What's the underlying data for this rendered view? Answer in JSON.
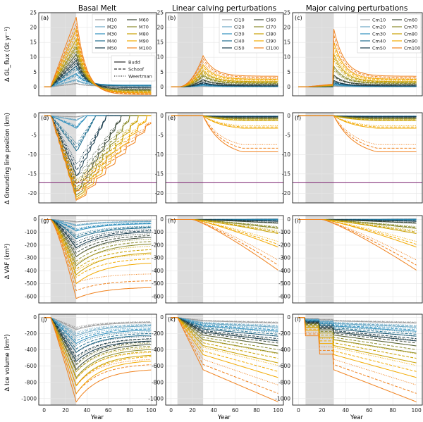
{
  "figure": {
    "column_titles": [
      "Basal Melt",
      "Linear calving perturbations",
      "Major calving perturbations"
    ],
    "row_ylabels": [
      "Δ GL_flux (Gt yr⁻¹)",
      "Δ Grounding line position (km)",
      "Δ VAF (km³)",
      "Δ Ice volume (km³)"
    ],
    "xlabel": "Year",
    "panel_labels": [
      "(a)",
      "(b)",
      "(c)",
      "(d)",
      "(e)",
      "(f)",
      "(g)",
      "(h)",
      "(i)",
      "(j)",
      "(k)",
      "(l)"
    ],
    "xticks": [
      "0",
      "20",
      "40",
      "60",
      "80",
      "100"
    ]
  },
  "legends": {
    "basal": [
      "M10",
      "M20",
      "M30",
      "M40",
      "M50",
      "M60",
      "M70",
      "M80",
      "M90",
      "M100"
    ],
    "linear": [
      "Cl10",
      "Cl20",
      "Cl30",
      "Cl40",
      "Cl50",
      "Cl60",
      "Cl70",
      "Cl80",
      "Cl90",
      "Cl100"
    ],
    "major": [
      "Cm10",
      "Cm20",
      "Cm30",
      "Cm40",
      "Cm50",
      "Cm60",
      "Cm70",
      "Cm80",
      "Cm90",
      "Cm100"
    ],
    "laws": [
      "Budd",
      "Schoof",
      "Weertman"
    ],
    "colors": [
      "#9e9e9e",
      "#6aa7c4",
      "#2f8fbd",
      "#1f6e8f",
      "#14384a",
      "#3c4a3a",
      "#8a8a2a",
      "#c9a000",
      "#f2a900",
      "#f0821e"
    ]
  },
  "chart_data": [
    {
      "panel": "(a)",
      "type": "line",
      "xlabel": "",
      "ylabel": "Δ GL_flux (Gt yr⁻¹)",
      "xlim": [
        -5,
        105
      ],
      "ylim": [
        -3,
        25
      ],
      "yticks": [
        0,
        5,
        10,
        15,
        20,
        25
      ],
      "shaded": [
        6,
        30
      ],
      "peak_year": 30,
      "series": [
        {
          "name": "M10",
          "peak": 1.2,
          "end": 0.3
        },
        {
          "name": "M20",
          "peak": 2.5,
          "end": 0.5
        },
        {
          "name": "M30",
          "peak": 4.5,
          "end": 0.6
        },
        {
          "name": "M40",
          "peak": 7,
          "end": 0.3
        },
        {
          "name": "M50",
          "peak": 9,
          "end": -0.3
        },
        {
          "name": "M60",
          "peak": 11,
          "end": -0.8
        },
        {
          "name": "M70",
          "peak": 13.5,
          "end": -1.3
        },
        {
          "name": "M80",
          "peak": 16,
          "end": -1.8
        },
        {
          "name": "M90",
          "peak": 19.5,
          "end": -2.1
        },
        {
          "name": "M100",
          "peak": 23.5,
          "end": -2.6
        }
      ]
    },
    {
      "panel": "(b)",
      "type": "line",
      "xlim": [
        -5,
        105
      ],
      "ylim": [
        -3,
        25
      ],
      "yticks": [
        0,
        5,
        10,
        15,
        20,
        25
      ],
      "shaded": [
        6,
        30
      ],
      "peak_year": 30,
      "series": [
        {
          "name": "Cl10",
          "peak": 0.2,
          "end": 0.05
        },
        {
          "name": "Cl20",
          "peak": 0.4,
          "end": 0.1
        },
        {
          "name": "Cl30",
          "peak": 0.7,
          "end": 0.2
        },
        {
          "name": "Cl40",
          "peak": 1.0,
          "end": 0.3
        },
        {
          "name": "Cl50",
          "peak": 1.5,
          "end": 0.4
        },
        {
          "name": "Cl60",
          "peak": 2.5,
          "end": 0.8
        },
        {
          "name": "Cl70",
          "peak": 4,
          "end": 1.3
        },
        {
          "name": "Cl80",
          "peak": 5.5,
          "end": 1.8
        },
        {
          "name": "Cl90",
          "peak": 7.5,
          "end": 2.6
        },
        {
          "name": "Cl100",
          "peak": 10.5,
          "end": 3.6
        }
      ]
    },
    {
      "panel": "(c)",
      "type": "line",
      "xlim": [
        -5,
        105
      ],
      "ylim": [
        -3,
        25
      ],
      "yticks": [
        0,
        5,
        10,
        15,
        20,
        25
      ],
      "shaded": [
        6,
        30
      ],
      "peak_year": 30,
      "series": [
        {
          "name": "Cm10",
          "peak": 0.3,
          "end": 0.05
        },
        {
          "name": "Cm20",
          "peak": 0.6,
          "end": 0.1
        },
        {
          "name": "Cm30",
          "peak": 1.0,
          "end": 0.2
        },
        {
          "name": "Cm40",
          "peak": 1.5,
          "end": 0.3
        },
        {
          "name": "Cm50",
          "peak": 2.2,
          "end": 0.4
        },
        {
          "name": "Cm60",
          "peak": 4,
          "end": 0.8
        },
        {
          "name": "Cm70",
          "peak": 7,
          "end": 1.3
        },
        {
          "name": "Cm80",
          "peak": 11,
          "end": 1.8
        },
        {
          "name": "Cm90",
          "peak": 15,
          "end": 2.6
        },
        {
          "name": "Cm100",
          "peak": 19.5,
          "end": 3.6
        }
      ]
    },
    {
      "panel": "(d)",
      "type": "line",
      "xlim": [
        -5,
        105
      ],
      "ylim": [
        -22.5,
        0.8
      ],
      "yticks": [
        0,
        -5,
        -10,
        -15,
        -20
      ],
      "shaded": [
        6,
        30
      ],
      "hline": -17.3,
      "series": [
        {
          "name": "M10",
          "min": -0.3,
          "recover": 36
        },
        {
          "name": "M20",
          "min": -1.2,
          "recover": 38
        },
        {
          "name": "M30",
          "min": -3.2,
          "recover": 40
        },
        {
          "name": "M40",
          "min": -9,
          "recover": 48
        },
        {
          "name": "M50",
          "min": -15.5,
          "recover": 58
        },
        {
          "name": "M60",
          "min": -19.5,
          "recover": 72
        },
        {
          "name": "M70",
          "min": -20.5,
          "recover": 80
        },
        {
          "name": "M80",
          "min": -21.0,
          "recover": 88
        },
        {
          "name": "M90",
          "min": -21.5,
          "recover": 96
        },
        {
          "name": "M100",
          "min": -21.8,
          "recover": 104
        }
      ]
    },
    {
      "panel": "(e)",
      "type": "line",
      "xlim": [
        -5,
        105
      ],
      "ylim": [
        -22.5,
        0.8
      ],
      "yticks": [
        0,
        -5,
        -10,
        -15,
        -20
      ],
      "shaded": [
        6,
        30
      ],
      "hline": -17.3,
      "series": [
        {
          "name": "Cl10",
          "end": -0.05
        },
        {
          "name": "Cl20",
          "end": -0.1
        },
        {
          "name": "Cl30",
          "end": -0.15
        },
        {
          "name": "Cl40",
          "end": -0.2
        },
        {
          "name": "Cl50",
          "end": -0.25
        },
        {
          "name": "Cl60",
          "end": -0.5
        },
        {
          "name": "Cl70",
          "end": -0.8
        },
        {
          "name": "Cl80",
          "end": -1.2
        },
        {
          "name": "Cl90",
          "end": -3.2
        },
        {
          "name": "Cl100",
          "end": -9.3
        }
      ]
    },
    {
      "panel": "(f)",
      "type": "line",
      "xlim": [
        -5,
        105
      ],
      "ylim": [
        -22.5,
        0.8
      ],
      "yticks": [
        0,
        -5,
        -10,
        -15,
        -20
      ],
      "shaded": [
        6,
        30
      ],
      "hline": -17.3,
      "series": [
        {
          "name": "Cm10",
          "end": -0.05
        },
        {
          "name": "Cm20",
          "end": -0.1
        },
        {
          "name": "Cm30",
          "end": -0.15
        },
        {
          "name": "Cm40",
          "end": -0.2
        },
        {
          "name": "Cm50",
          "end": -0.25
        },
        {
          "name": "Cm60",
          "end": -0.5
        },
        {
          "name": "Cm70",
          "end": -0.8
        },
        {
          "name": "Cm80",
          "end": -1.2
        },
        {
          "name": "Cm90",
          "end": -3.2
        },
        {
          "name": "Cm100",
          "end": -9.3
        }
      ]
    },
    {
      "panel": "(g)",
      "type": "line",
      "ylabel": "Δ VAF (km³)",
      "xlim": [
        -5,
        105
      ],
      "ylim": [
        -650,
        30
      ],
      "yticks": [
        0,
        -100,
        -200,
        -300,
        -400,
        -500,
        -600
      ],
      "shaded": [
        6,
        30
      ],
      "series": [
        {
          "name": "M10",
          "min": -20,
          "end": -5
        },
        {
          "name": "M20",
          "min": -50,
          "end": -15
        },
        {
          "name": "M30",
          "min": -90,
          "end": -30
        },
        {
          "name": "M40",
          "min": -150,
          "end": -60
        },
        {
          "name": "M50",
          "min": -220,
          "end": -90
        },
        {
          "name": "M60",
          "min": -290,
          "end": -130
        },
        {
          "name": "M70",
          "min": -360,
          "end": -180
        },
        {
          "name": "M80",
          "min": -430,
          "end": -250
        },
        {
          "name": "M90",
          "min": -500,
          "end": -330
        },
        {
          "name": "M100",
          "min": -615,
          "end": -525
        }
      ]
    },
    {
      "panel": "(h)",
      "type": "line",
      "xlim": [
        -5,
        105
      ],
      "ylim": [
        -650,
        30
      ],
      "yticks": [
        0,
        -100,
        -200,
        -300,
        -400,
        -500,
        -600
      ],
      "shaded": [
        6,
        30
      ],
      "series": [
        {
          "name": "Cl10",
          "end": 5
        },
        {
          "name": "Cl20",
          "end": 3
        },
        {
          "name": "Cl30",
          "end": 0
        },
        {
          "name": "Cl40",
          "end": -5
        },
        {
          "name": "Cl50",
          "end": -15
        },
        {
          "name": "Cl60",
          "end": -30
        },
        {
          "name": "Cl70",
          "end": -70
        },
        {
          "name": "Cl80",
          "end": -110
        },
        {
          "name": "Cl90",
          "end": -215
        },
        {
          "name": "Cl100",
          "end": -395
        }
      ]
    },
    {
      "panel": "(i)",
      "type": "line",
      "xlim": [
        -5,
        105
      ],
      "ylim": [
        -650,
        30
      ],
      "yticks": [
        0,
        -100,
        -200,
        -300,
        -400,
        -500,
        -600
      ],
      "shaded": [
        6,
        30
      ],
      "series": [
        {
          "name": "Cm10",
          "end": 5
        },
        {
          "name": "Cm20",
          "end": 3
        },
        {
          "name": "Cm30",
          "end": 0
        },
        {
          "name": "Cm40",
          "end": -5
        },
        {
          "name": "Cm50",
          "end": -15
        },
        {
          "name": "Cm60",
          "end": -30
        },
        {
          "name": "Cm70",
          "end": -70
        },
        {
          "name": "Cm80",
          "end": -110
        },
        {
          "name": "Cm90",
          "end": -215
        },
        {
          "name": "Cm100",
          "end": -395
        }
      ]
    },
    {
      "panel": "(j)",
      "type": "line",
      "ylabel": "Δ Ice volume (km³)",
      "xlim": [
        -5,
        105
      ],
      "ylim": [
        -1080,
        40
      ],
      "yticks": [
        0,
        -200,
        -400,
        -600,
        -800,
        -1000
      ],
      "shaded": [
        6,
        30
      ],
      "series": [
        {
          "name": "M10",
          "min": -150,
          "end": -60
        },
        {
          "name": "M20",
          "min": -230,
          "end": -100
        },
        {
          "name": "M30",
          "min": -320,
          "end": -150
        },
        {
          "name": "M40",
          "min": -430,
          "end": -210
        },
        {
          "name": "M50",
          "min": -540,
          "end": -280
        },
        {
          "name": "M60",
          "min": -640,
          "end": -320
        },
        {
          "name": "M70",
          "min": -740,
          "end": -380
        },
        {
          "name": "M80",
          "min": -840,
          "end": -450
        },
        {
          "name": "M90",
          "min": -940,
          "end": -520
        },
        {
          "name": "M100",
          "min": -1040,
          "end": -630
        }
      ]
    },
    {
      "panel": "(k)",
      "type": "line",
      "xlim": [
        -5,
        105
      ],
      "ylim": [
        -1080,
        40
      ],
      "yticks": [
        0,
        -200,
        -400,
        -600,
        -800,
        -1000
      ],
      "shaded": [
        6,
        30
      ],
      "series": [
        {
          "name": "Cl10",
          "end": -70
        },
        {
          "name": "Cl20",
          "end": -120
        },
        {
          "name": "Cl30",
          "end": -170
        },
        {
          "name": "Cl40",
          "end": -230
        },
        {
          "name": "Cl50",
          "end": -290
        },
        {
          "name": "Cl60",
          "end": -350
        },
        {
          "name": "Cl70",
          "end": -440
        },
        {
          "name": "Cl80",
          "end": -560
        },
        {
          "name": "Cl90",
          "end": -740
        },
        {
          "name": "Cl100",
          "end": -1040
        }
      ]
    },
    {
      "panel": "(l)",
      "type": "line",
      "xlim": [
        -5,
        105
      ],
      "ylim": [
        -1080,
        40
      ],
      "yticks": [
        0,
        -200,
        -400,
        -600,
        -800,
        -1000
      ],
      "shaded": [
        6,
        30
      ],
      "series": [
        {
          "name": "Cm10",
          "end": -70
        },
        {
          "name": "Cm20",
          "end": -120
        },
        {
          "name": "Cm30",
          "end": -170
        },
        {
          "name": "Cm40",
          "end": -230
        },
        {
          "name": "Cm50",
          "end": -290
        },
        {
          "name": "Cm60",
          "end": -350
        },
        {
          "name": "Cm70",
          "end": -440
        },
        {
          "name": "Cm80",
          "end": -560
        },
        {
          "name": "Cm90",
          "end": -740
        },
        {
          "name": "Cm100",
          "end": -1040
        }
      ]
    }
  ]
}
